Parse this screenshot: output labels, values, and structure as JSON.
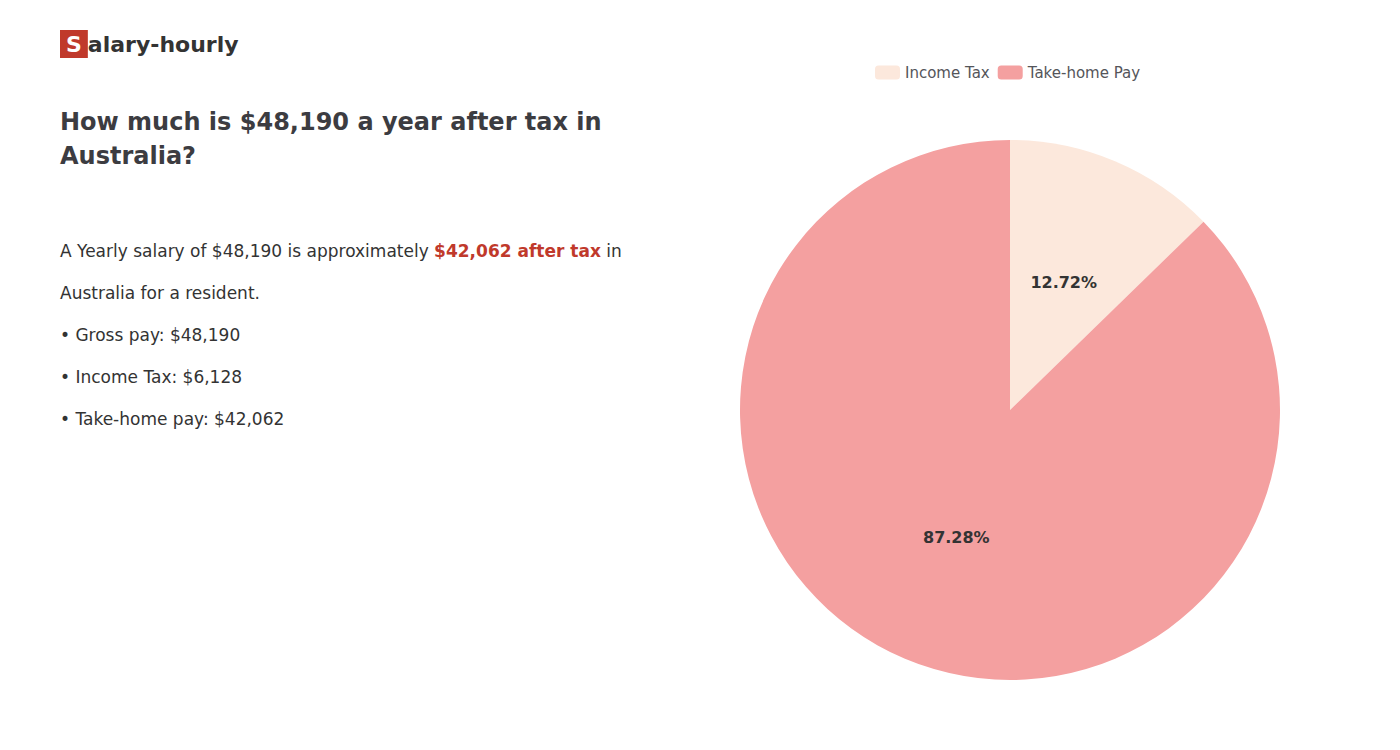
{
  "chart_data": {
    "type": "pie",
    "title": "How much is $48,190 a year after tax in\nAustralia?",
    "categories": [
      "Income Tax",
      "Take-home Pay"
    ],
    "values": [
      12.72,
      87.28
    ],
    "value_labels": [
      "12.72%",
      "87.28%"
    ],
    "colors": [
      "#fce8dc",
      "#f4a0a0"
    ],
    "data_labels": true,
    "legend": "top",
    "annotations": [
      [
        {
          "text": "S",
          "color": "#ffffff",
          "background": "#c0392b"
        },
        {
          "text": "alary-hourly"
        }
      ],
      [
        {
          "text": "A Yearly salary of $48,190 is approximately "
        },
        {
          "text": "$42,062 after tax",
          "color": "#c0392b"
        },
        {
          "text": " in"
        }
      ],
      [
        {
          "text": "Australia for a resident."
        }
      ],
      [
        {
          "text": "• Gross pay: $48,190"
        }
      ],
      [
        {
          "text": "• Income Tax: $6,128"
        }
      ],
      [
        {
          "text": "• Take-home pay: $42,062"
        }
      ]
    ]
  }
}
